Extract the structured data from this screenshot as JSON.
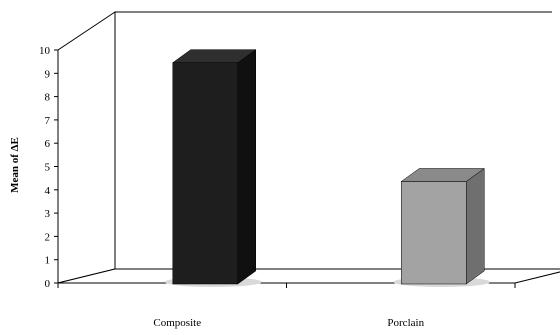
{
  "chart_data": {
    "type": "bar",
    "style": "3d",
    "categories": [
      "Composite",
      "Porclain"
    ],
    "values": [
      9.5,
      4.4
    ],
    "bar_colors": [
      "#1e1e1e",
      "#a3a3a3"
    ],
    "bar_side_colors": [
      "#101010",
      "#6f6f6f"
    ],
    "bar_top_colors": [
      "#2f2f2f",
      "#8a8a8a"
    ],
    "ylabel": "Mean of ΔE",
    "xlabel": "",
    "ylim": [
      0,
      10
    ],
    "yticks": [
      0,
      1,
      2,
      3,
      4,
      5,
      6,
      7,
      8,
      9,
      10
    ],
    "grid": false,
    "legend": "none"
  }
}
